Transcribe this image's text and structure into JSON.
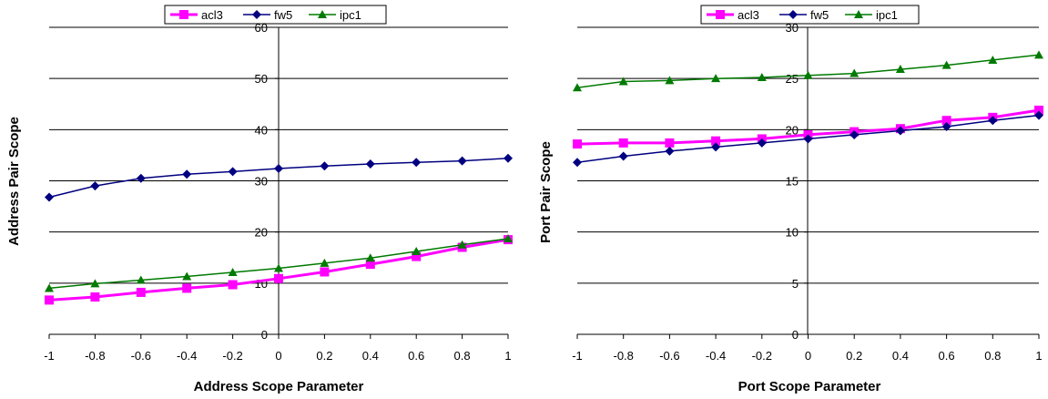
{
  "chart_data": [
    {
      "type": "line",
      "title": "",
      "xlabel": "Address Scope Parameter",
      "ylabel": "Address Pair Scope",
      "x": [
        -1,
        -0.8,
        -0.6,
        -0.4,
        -0.2,
        0,
        0.2,
        0.4,
        0.6,
        0.8,
        1
      ],
      "x_tick_labels": [
        "-1",
        "-0.8",
        "-0.6",
        "-0.4",
        "-0.2",
        "0",
        "0.2",
        "0.4",
        "0.6",
        "0.8",
        "1"
      ],
      "ylim": [
        0,
        60
      ],
      "y_ticks": [
        0,
        10,
        20,
        30,
        40,
        50,
        60
      ],
      "y_tick_labels": [
        "0",
        "10",
        "20",
        "30",
        "40",
        "50",
        "60"
      ],
      "grid": "horizontal",
      "legend_position": "top",
      "series": [
        {
          "name": "acl3",
          "color": "#ff00ff",
          "marker": "square",
          "values": [
            6.7,
            7.3,
            8.2,
            9.0,
            9.7,
            10.9,
            12.2,
            13.7,
            15.2,
            17.0,
            18.5
          ]
        },
        {
          "name": "fw5",
          "color": "#000080",
          "marker": "diamond",
          "values": [
            26.8,
            29.0,
            30.5,
            31.3,
            31.8,
            32.4,
            32.9,
            33.3,
            33.6,
            33.9,
            34.4
          ]
        },
        {
          "name": "ipc1",
          "color": "#007a00",
          "marker": "triangle",
          "values": [
            9.0,
            9.9,
            10.6,
            11.3,
            12.1,
            12.9,
            13.9,
            14.9,
            16.2,
            17.5,
            18.7
          ]
        }
      ]
    },
    {
      "type": "line",
      "title": "",
      "xlabel": "Port Scope Parameter",
      "ylabel": "Port Pair Scope",
      "x": [
        -1,
        -0.8,
        -0.6,
        -0.4,
        -0.2,
        0,
        0.2,
        0.4,
        0.6,
        0.8,
        1
      ],
      "x_tick_labels": [
        "-1",
        "-0.8",
        "-0.6",
        "-0.4",
        "-0.2",
        "0",
        "0.2",
        "0.4",
        "0.6",
        "0.8",
        "1"
      ],
      "ylim": [
        0,
        30
      ],
      "y_ticks": [
        0,
        5,
        10,
        15,
        20,
        25,
        30
      ],
      "y_tick_labels": [
        "0",
        "5",
        "10",
        "15",
        "20",
        "25",
        "30"
      ],
      "grid": "horizontal",
      "legend_position": "top",
      "series": [
        {
          "name": "acl3",
          "color": "#ff00ff",
          "marker": "square",
          "values": [
            18.6,
            18.7,
            18.7,
            18.9,
            19.1,
            19.5,
            19.8,
            20.1,
            20.9,
            21.2,
            21.9
          ]
        },
        {
          "name": "fw5",
          "color": "#000080",
          "marker": "diamond",
          "values": [
            16.8,
            17.4,
            17.9,
            18.3,
            18.7,
            19.1,
            19.5,
            19.9,
            20.3,
            20.9,
            21.4
          ]
        },
        {
          "name": "ipc1",
          "color": "#007a00",
          "marker": "triangle",
          "values": [
            24.1,
            24.7,
            24.8,
            25.0,
            25.1,
            25.3,
            25.5,
            25.9,
            26.3,
            26.8,
            27.3
          ]
        }
      ]
    }
  ]
}
